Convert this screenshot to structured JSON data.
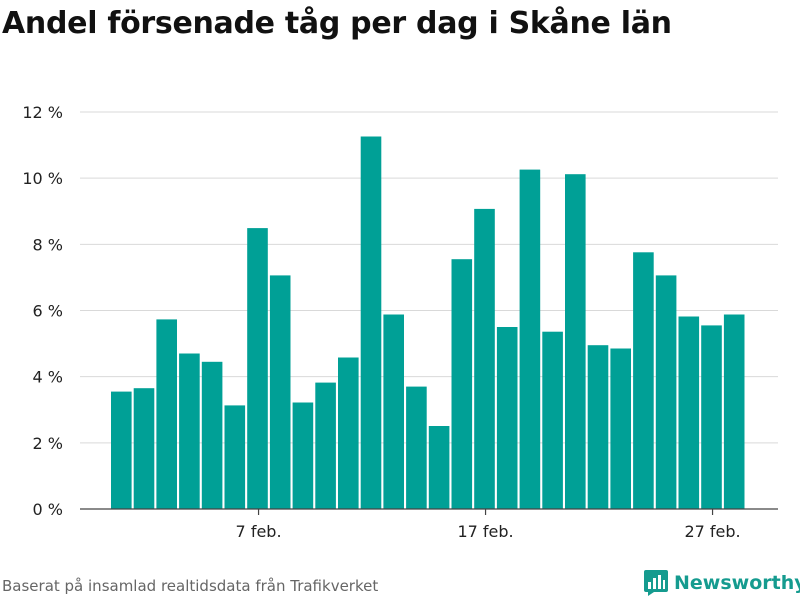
{
  "title": "Andel försenade tåg per dag i Skåne län",
  "source": "Baserat på insamlad realtidsdata från Trafikverket",
  "brand": {
    "name": "Newsworthy",
    "icon": "bar-chart-logo-icon",
    "color": "#159b8f"
  },
  "chart_data": {
    "type": "bar",
    "title": "Andel försenade tåg per dag i Skåne län",
    "xlabel": "",
    "ylabel": "",
    "ylim": [
      0,
      12
    ],
    "yticks": [
      0,
      2,
      4,
      6,
      8,
      10,
      12
    ],
    "ytick_suffix": " %",
    "grid": true,
    "bar_color": "#00a096",
    "categories": [
      "1 feb.",
      "2 feb.",
      "3 feb.",
      "4 feb.",
      "5 feb.",
      "6 feb.",
      "7 feb.",
      "8 feb.",
      "9 feb.",
      "10 feb.",
      "11 feb.",
      "12 feb.",
      "13 feb.",
      "14 feb.",
      "15 feb.",
      "16 feb.",
      "17 feb.",
      "18 feb.",
      "19 feb.",
      "20 feb.",
      "21 feb.",
      "22 feb.",
      "23 feb.",
      "24 feb.",
      "25 feb.",
      "26 feb.",
      "27 feb.",
      "28 feb."
    ],
    "values": [
      3.55,
      3.65,
      5.73,
      4.7,
      4.45,
      3.13,
      8.49,
      7.06,
      3.22,
      3.82,
      4.58,
      11.26,
      5.88,
      3.7,
      2.51,
      7.55,
      9.07,
      5.5,
      10.26,
      5.36,
      10.12,
      4.95,
      4.85,
      7.76,
      7.06,
      5.82,
      5.55,
      5.88
    ],
    "xtick_labels": [
      {
        "category": "7 feb.",
        "label": "7 feb."
      },
      {
        "category": "17 feb.",
        "label": "17 feb."
      },
      {
        "category": "27 feb.",
        "label": "27 feb."
      }
    ]
  }
}
